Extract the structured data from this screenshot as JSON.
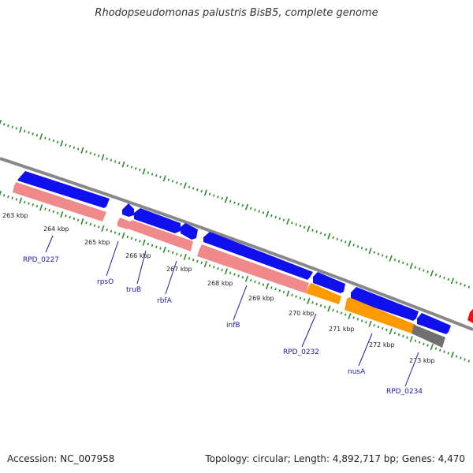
{
  "title": "Rhodopseudomonas palustris BisB5, complete genome",
  "accession": "Accession: NC_007958",
  "topology": "Topology: circular; Length: 4,892,717 bp; Genes: 4,470",
  "colors": {
    "forward_cds": "#1010ee",
    "reverse_cds": "#f08a8a",
    "orange_gene": "#ff9900",
    "gray_gene": "#707070",
    "red_gene": "#ee1111",
    "backbone": "#888888",
    "ticks": "#2a8a2a",
    "label": "#1a1aa8"
  },
  "kbp_ticks": [
    "263 kbp",
    "264 kbp",
    "265 kbp",
    "266 kbp",
    "267 kbp",
    "268 kbp",
    "269 kbp",
    "270 kbp",
    "271 kbp",
    "272 kbp",
    "273 kbp"
  ],
  "gene_labels": [
    "RPD_0227",
    "rpsO",
    "truB",
    "rbfA",
    "infB",
    "RPD_0232",
    "nusA",
    "RPD_0234"
  ]
}
